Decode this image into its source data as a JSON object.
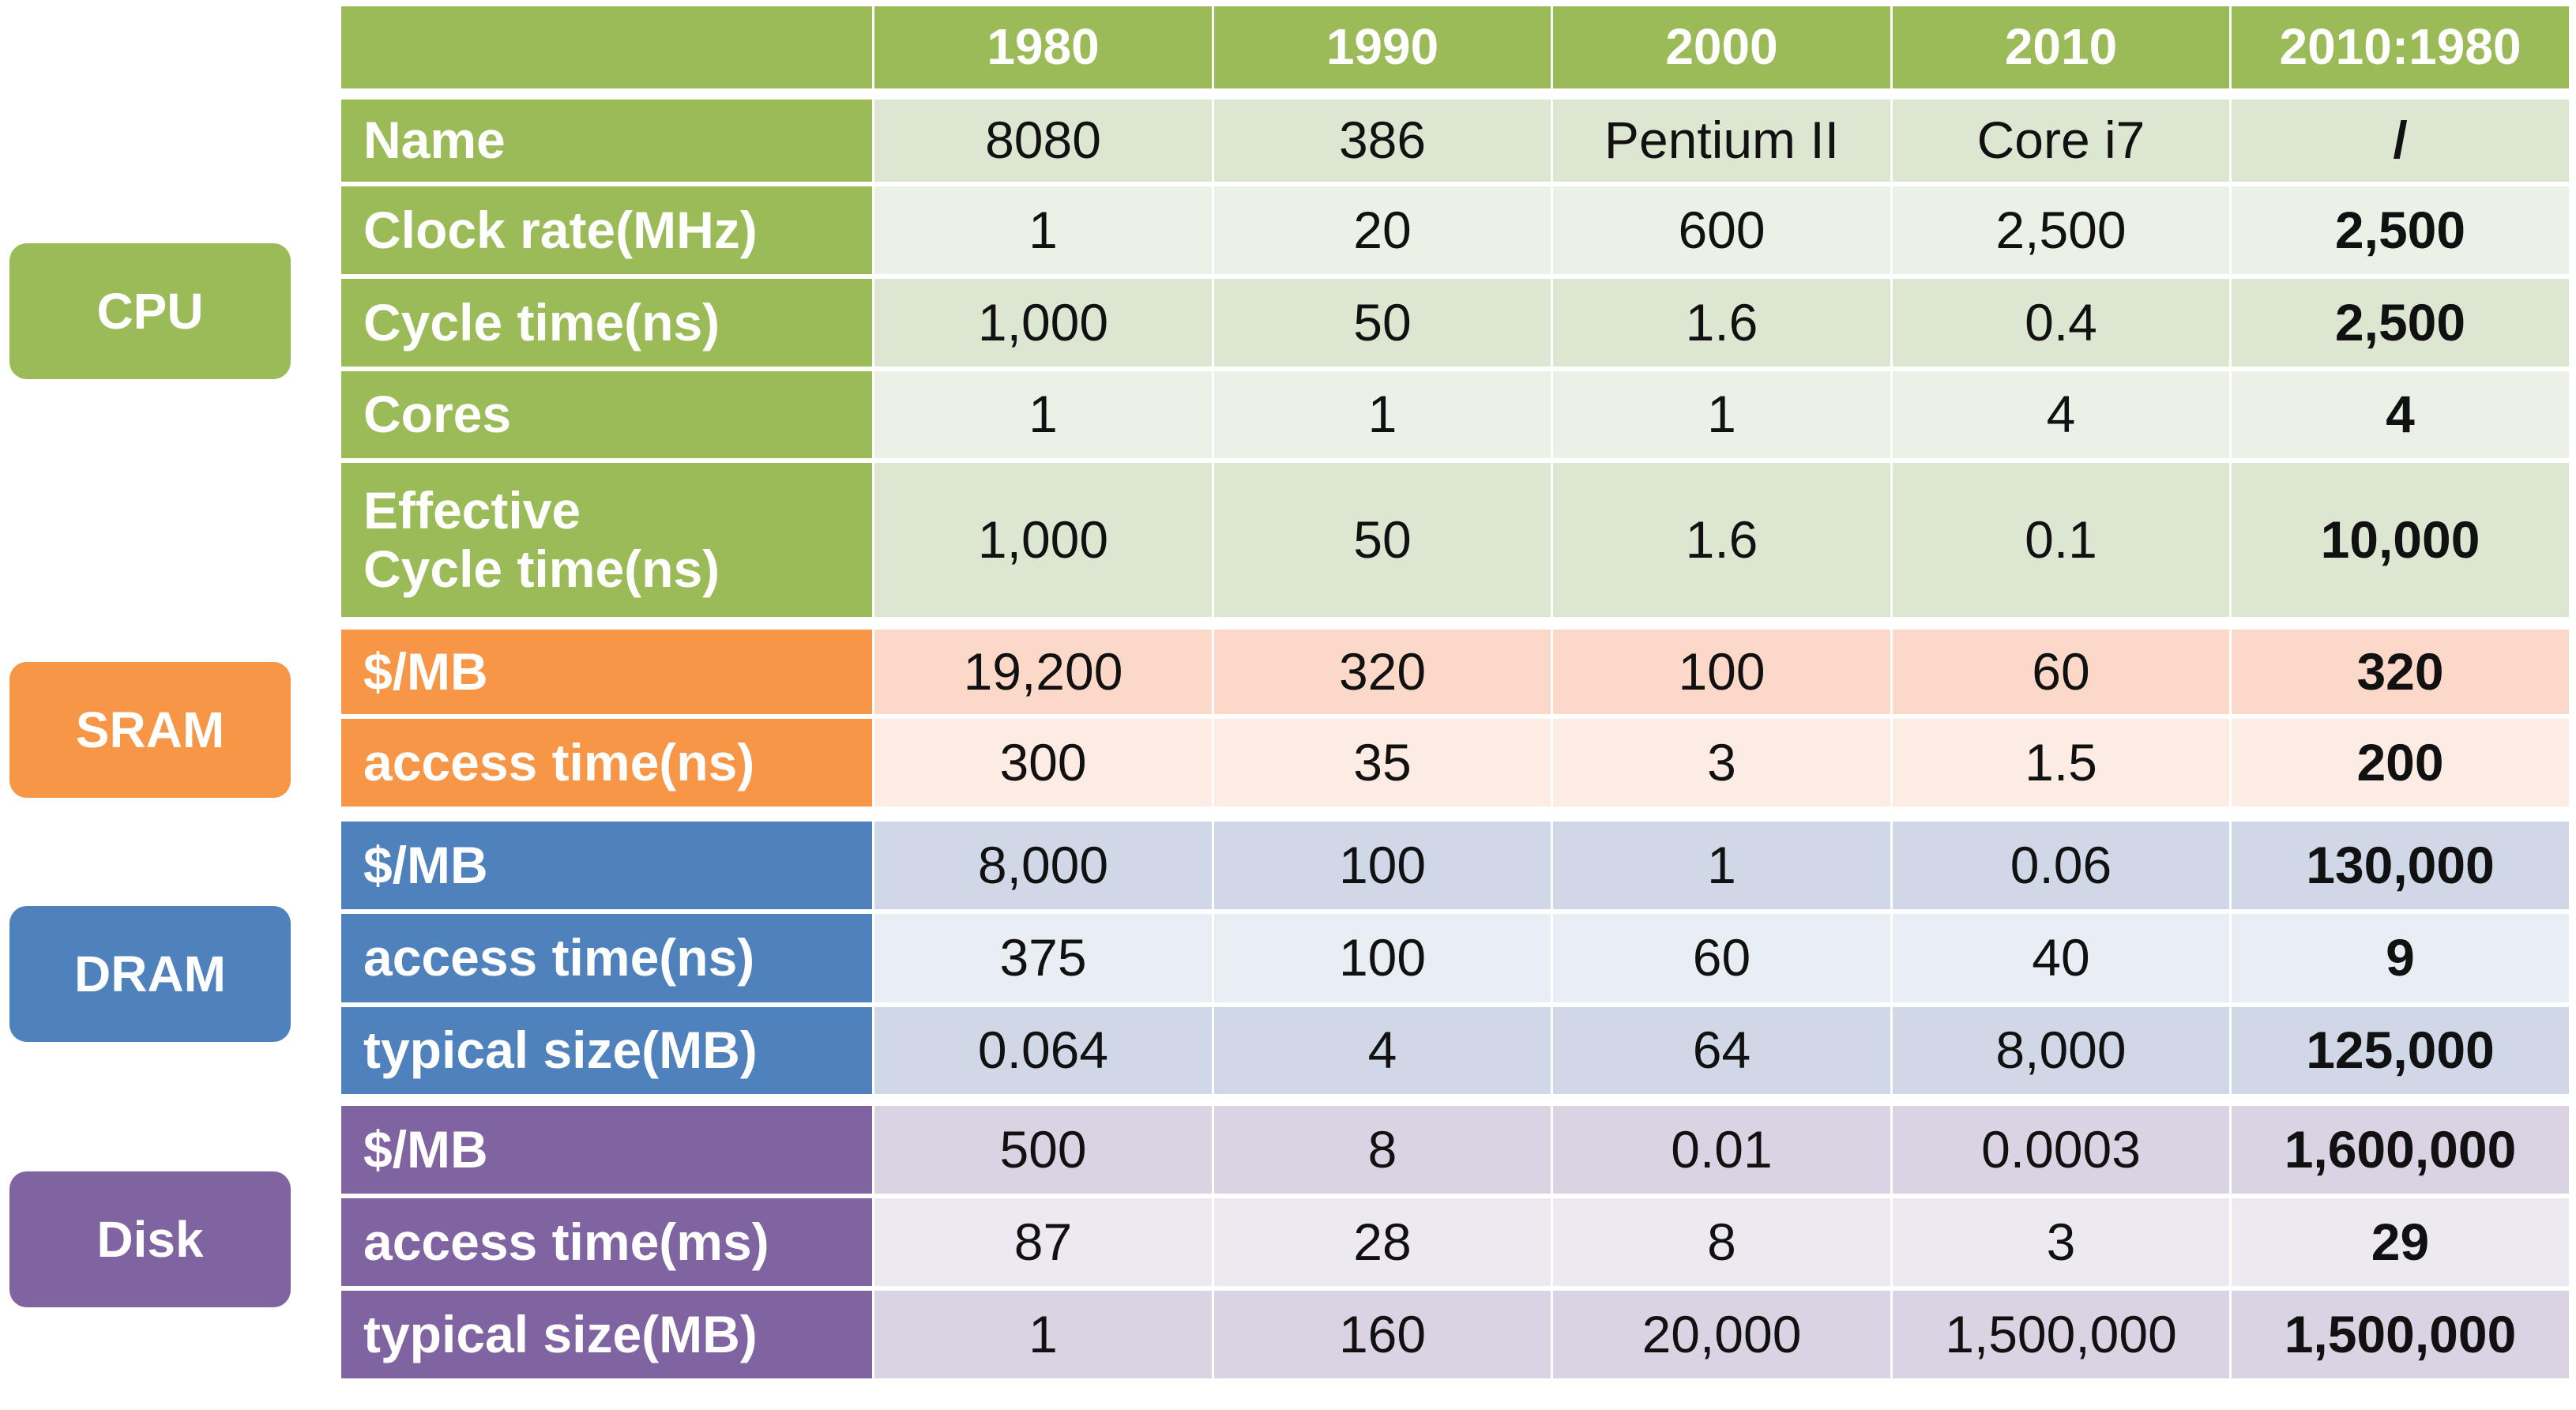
{
  "colors": {
    "cpu": "#9bbb59",
    "cpu_light": "#dce6d1",
    "cpu_lighter": "#ebf1e6",
    "sram": "#f79646",
    "sram_light": "#fcd8c8",
    "sram_lighter": "#fdece4",
    "dram": "#4f81bd",
    "dram_light": "#d0d8e8",
    "dram_lighter": "#e9edf4",
    "disk": "#8064a2",
    "disk_light": "#d9d3e3",
    "disk_lighter": "#ece9f1"
  },
  "chart_data": {
    "type": "table",
    "columns": [
      "1980",
      "1990",
      "2000",
      "2010",
      "2010:1980"
    ],
    "groups": [
      {
        "name": "CPU",
        "color_key": "cpu",
        "rows": [
          {
            "label": "Name",
            "values": [
              "8080",
              "386",
              "Pentium II",
              "Core i7",
              "/"
            ]
          },
          {
            "label": "Clock rate(MHz)",
            "values": [
              "1",
              "20",
              "600",
              "2,500",
              "2,500"
            ]
          },
          {
            "label": "Cycle time(ns)",
            "values": [
              "1,000",
              "50",
              "1.6",
              "0.4",
              "2,500"
            ]
          },
          {
            "label": "Cores",
            "values": [
              "1",
              "1",
              "1",
              "4",
              "4"
            ]
          },
          {
            "label": "Effective\nCycle time(ns)",
            "values": [
              "1,000",
              "50",
              "1.6",
              "0.1",
              "10,000"
            ]
          }
        ]
      },
      {
        "name": "SRAM",
        "color_key": "sram",
        "rows": [
          {
            "label": "$/MB",
            "values": [
              "19,200",
              "320",
              "100",
              "60",
              "320"
            ]
          },
          {
            "label": "access time(ns)",
            "values": [
              "300",
              "35",
              "3",
              "1.5",
              "200"
            ]
          }
        ]
      },
      {
        "name": "DRAM",
        "color_key": "dram",
        "rows": [
          {
            "label": "$/MB",
            "values": [
              "8,000",
              "100",
              "1",
              "0.06",
              "130,000"
            ]
          },
          {
            "label": "access time(ns)",
            "values": [
              "375",
              "100",
              "60",
              "40",
              "9"
            ]
          },
          {
            "label": "typical size(MB)",
            "values": [
              "0.064",
              "4",
              "64",
              "8,000",
              "125,000"
            ]
          }
        ]
      },
      {
        "name": "Disk",
        "color_key": "disk",
        "rows": [
          {
            "label": "$/MB",
            "values": [
              "500",
              "8",
              "0.01",
              "0.0003",
              "1,600,000"
            ]
          },
          {
            "label": "access time(ms)",
            "values": [
              "87",
              "28",
              "8",
              "3",
              "29"
            ]
          },
          {
            "label": "typical size(MB)",
            "values": [
              "1",
              "160",
              "20,000",
              "1,500,000",
              "1,500,000"
            ]
          }
        ]
      }
    ]
  }
}
